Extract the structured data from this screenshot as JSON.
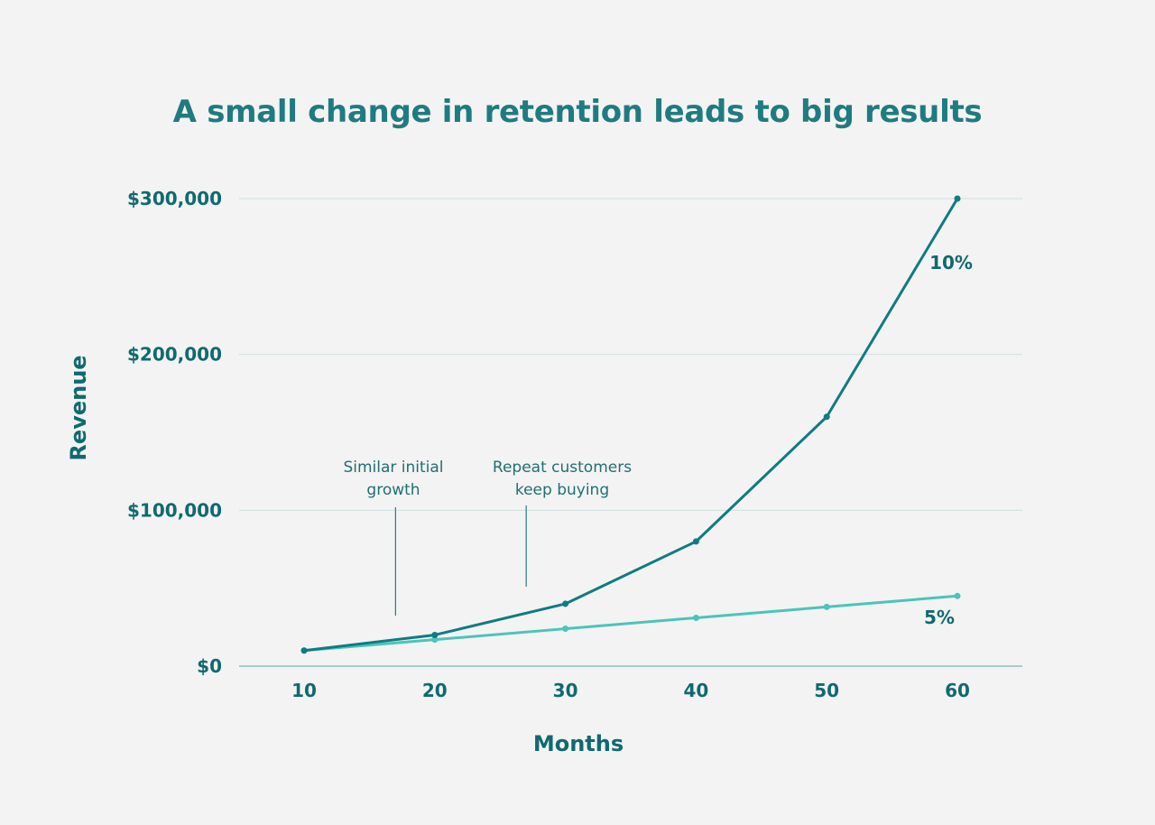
{
  "chart_data": {
    "type": "line",
    "title": "A small change in retention leads to big results",
    "xlabel": "Months",
    "ylabel": "Revenue",
    "x": [
      10,
      20,
      30,
      40,
      50,
      60
    ],
    "ylim": [
      0,
      300000
    ],
    "yticks": [
      0,
      100000,
      200000,
      300000
    ],
    "ytick_labels": [
      "$0",
      "$100,000",
      "$200,000",
      "$300,000"
    ],
    "grid": true,
    "series": [
      {
        "name": "10%",
        "color": "#107b82",
        "values": [
          10000,
          20000,
          40000,
          80000,
          160000,
          300000
        ]
      },
      {
        "name": "5%",
        "color": "#4bc4bb",
        "values": [
          10000,
          17000,
          24000,
          31000,
          38000,
          45000
        ]
      }
    ],
    "annotations": [
      {
        "lines": [
          "Similar initial",
          "growth"
        ],
        "x": 17
      },
      {
        "lines": [
          "Repeat customers",
          "keep buying"
        ],
        "x": 27
      }
    ]
  }
}
